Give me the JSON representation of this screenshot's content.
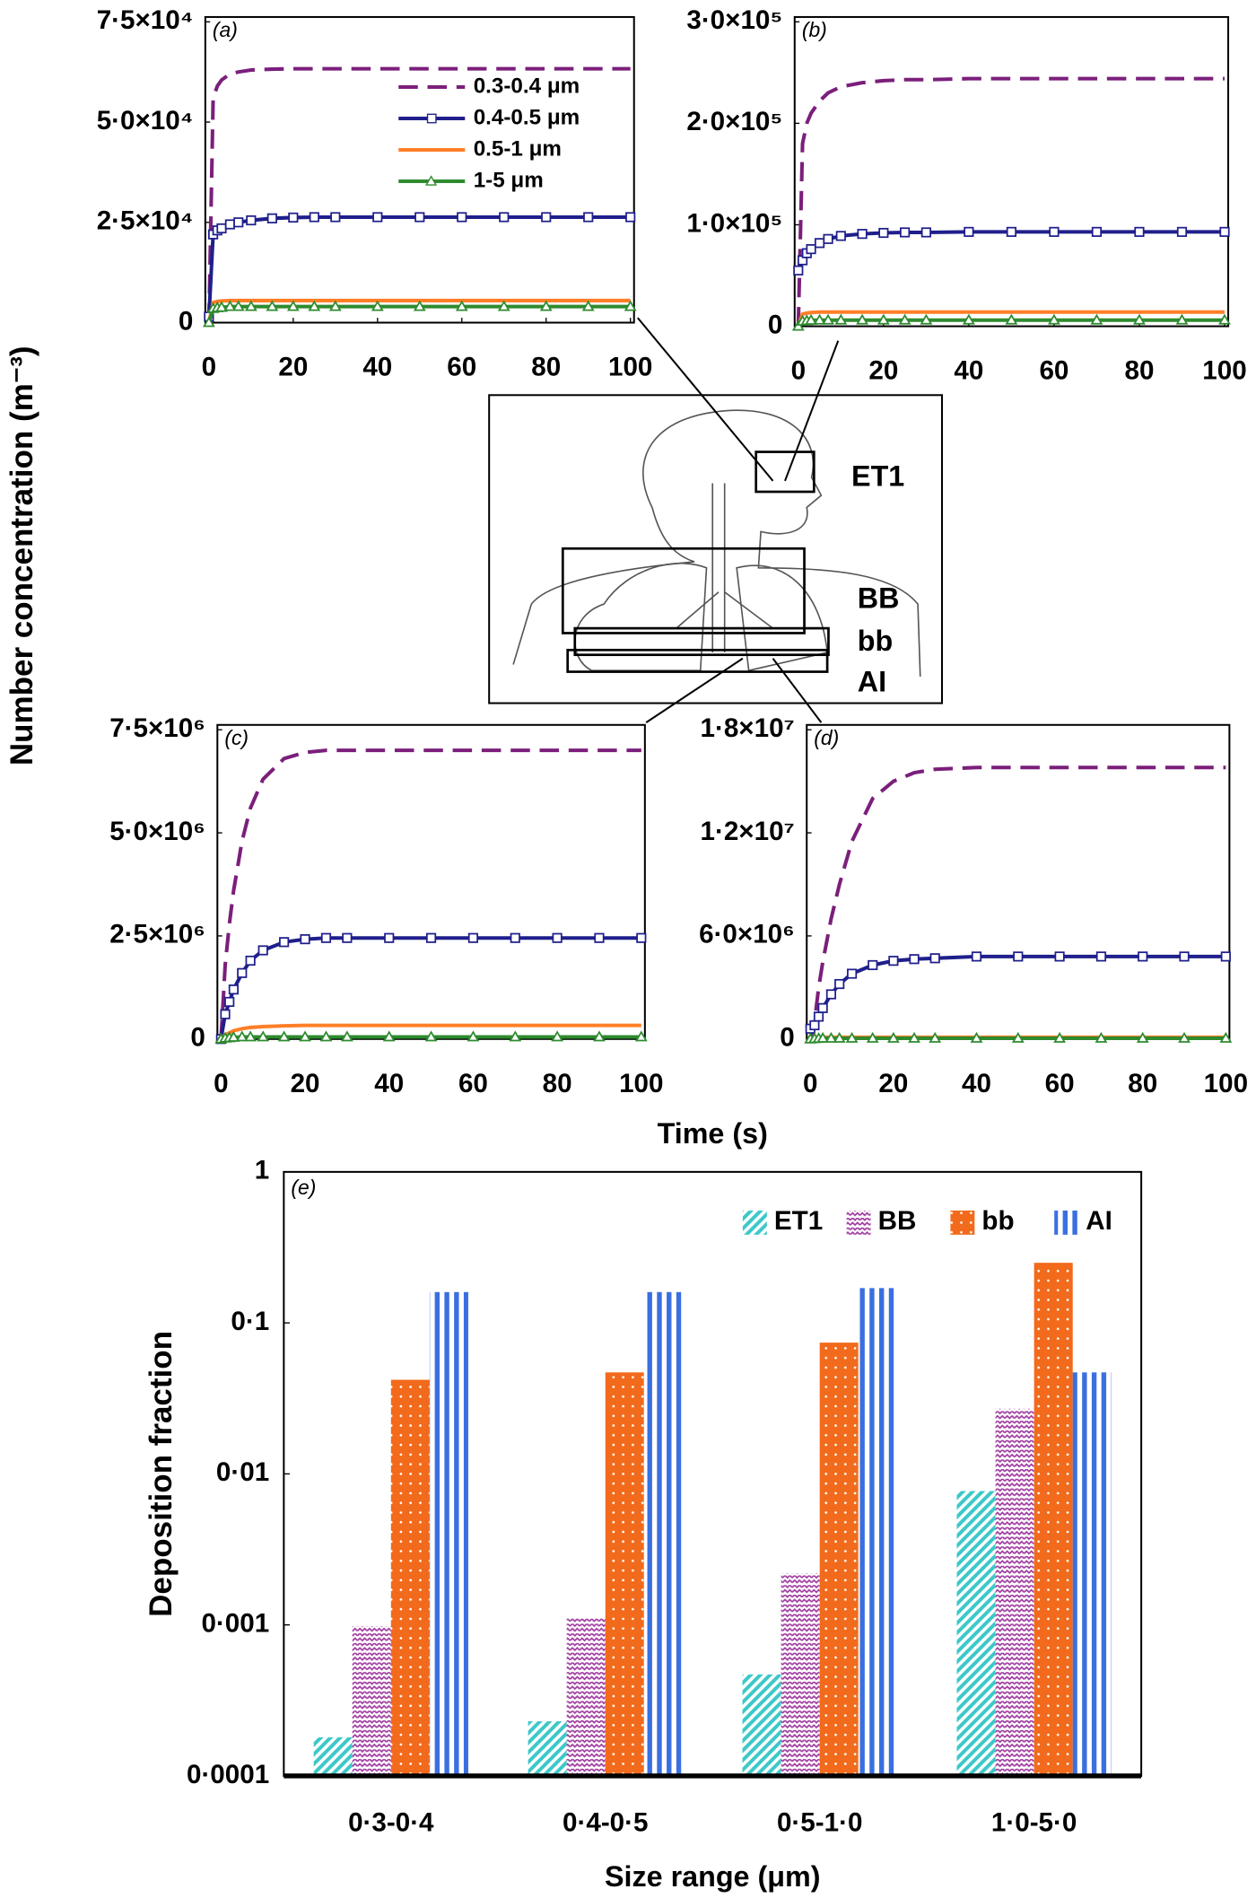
{
  "figure": {
    "ylabel": "Number concentration (m⁻³)",
    "xlabel": "Time (s)"
  },
  "diagram": {
    "labels": [
      "ET1",
      "BB",
      "bb",
      "AI"
    ]
  },
  "chart_data": [
    {
      "type": "line",
      "panel": "(a)",
      "legend": "upper right",
      "x": [
        0,
        1,
        2,
        3,
        5,
        7,
        10,
        15,
        20,
        25,
        30,
        40,
        50,
        60,
        70,
        80,
        90,
        100
      ],
      "xlim": [
        0,
        100
      ],
      "xticks": [
        0,
        20,
        40,
        60,
        80,
        100
      ],
      "ylim": [
        0,
        75000
      ],
      "yticks": [
        0,
        {
          "value": 25000,
          "label": "2·5×10⁴"
        },
        {
          "value": 50000,
          "label": "5·0×10⁴"
        },
        {
          "value": 75000,
          "label": "7·5×10⁴"
        }
      ],
      "series": [
        {
          "name": "0.3-0.4 μm",
          "color": "#7b1f7b",
          "dash": true,
          "values": [
            0,
            56000,
            59000,
            60500,
            62000,
            62500,
            63000,
            63200,
            63300,
            63300,
            63300,
            63300,
            63300,
            63300,
            63300,
            63300,
            63300,
            63300
          ]
        },
        {
          "name": "0.4-0.5 μm",
          "color": "#1f1f8c",
          "marker": "square",
          "values": [
            1500,
            22000,
            23000,
            23500,
            24500,
            25000,
            25500,
            26000,
            26200,
            26300,
            26300,
            26300,
            26300,
            26300,
            26300,
            26300,
            26300,
            26300
          ]
        },
        {
          "name": "0.5-1 μm",
          "color": "#ff7f27",
          "values": [
            0,
            5000,
            5300,
            5400,
            5500,
            5500,
            5500,
            5500,
            5500,
            5500,
            5500,
            5500,
            5500,
            5500,
            5500,
            5500,
            5500,
            5500
          ]
        },
        {
          "name": "1-5 μm",
          "color": "#2e8b2e",
          "marker": "triangle",
          "values": [
            0,
            3500,
            3700,
            3800,
            4000,
            4000,
            4000,
            4000,
            4000,
            4000,
            4000,
            4000,
            4000,
            4000,
            4000,
            4000,
            4000,
            4000
          ]
        }
      ]
    },
    {
      "type": "line",
      "panel": "(b)",
      "x": [
        0,
        1,
        2,
        3,
        5,
        7,
        10,
        15,
        20,
        25,
        30,
        40,
        50,
        60,
        70,
        80,
        90,
        100
      ],
      "xlim": [
        0,
        100
      ],
      "xticks": [
        0,
        20,
        40,
        60,
        80,
        100
      ],
      "ylim": [
        0,
        300000
      ],
      "yticks": [
        0,
        {
          "value": 100000,
          "label": "1·0×10⁵"
        },
        {
          "value": 200000,
          "label": "2·0×10⁵"
        },
        {
          "value": 300000,
          "label": "3·0×10⁵"
        }
      ],
      "series": [
        {
          "color": "#7b1f7b",
          "dash": true,
          "values": [
            0,
            180000,
            200000,
            210000,
            222000,
            230000,
            236000,
            240000,
            242000,
            243000,
            243000,
            244000,
            244000,
            244000,
            244000,
            244000,
            244000,
            244000
          ]
        },
        {
          "color": "#1f1f8c",
          "marker": "square",
          "values": [
            55000,
            65000,
            72000,
            76000,
            82000,
            86000,
            89000,
            91000,
            92000,
            92500,
            92500,
            93000,
            93000,
            93000,
            93000,
            93000,
            93000,
            93000
          ]
        },
        {
          "color": "#ff7f27",
          "values": [
            0,
            12000,
            13000,
            13500,
            14000,
            14000,
            14000,
            14000,
            14000,
            14000,
            14000,
            14000,
            14000,
            14000,
            14000,
            14000,
            14000,
            14000
          ]
        },
        {
          "color": "#2e8b2e",
          "marker": "triangle",
          "values": [
            0,
            5000,
            5500,
            5800,
            6000,
            6000,
            6000,
            6000,
            6000,
            6000,
            6000,
            6000,
            6000,
            6000,
            6000,
            6000,
            6000,
            6000
          ]
        }
      ]
    },
    {
      "type": "line",
      "panel": "(c)",
      "x": [
        0,
        1,
        2,
        3,
        5,
        7,
        10,
        15,
        20,
        25,
        30,
        40,
        50,
        60,
        70,
        80,
        90,
        100
      ],
      "xlim": [
        0,
        100
      ],
      "xticks": [
        0,
        20,
        40,
        60,
        80,
        100
      ],
      "ylim": [
        0,
        7500000
      ],
      "yticks": [
        0,
        {
          "value": 2500000,
          "label": "2·5×10⁶"
        },
        {
          "value": 5000000,
          "label": "5·0×10⁶"
        },
        {
          "value": 7500000,
          "label": "7·5×10⁶"
        }
      ],
      "series": [
        {
          "color": "#7b1f7b",
          "dash": true,
          "values": [
            0,
            1800000,
            2800000,
            3600000,
            4800000,
            5600000,
            6300000,
            6800000,
            6950000,
            7000000,
            7000000,
            7000000,
            7000000,
            7000000,
            7000000,
            7000000,
            7000000,
            7000000
          ]
        },
        {
          "color": "#1f1f8c",
          "marker": "square",
          "values": [
            0,
            600000,
            900000,
            1200000,
            1600000,
            1900000,
            2150000,
            2350000,
            2420000,
            2450000,
            2450000,
            2450000,
            2450000,
            2450000,
            2450000,
            2450000,
            2450000,
            2450000
          ]
        },
        {
          "color": "#ff7f27",
          "values": [
            0,
            100000,
            150000,
            200000,
            250000,
            280000,
            300000,
            320000,
            330000,
            330000,
            330000,
            330000,
            330000,
            330000,
            330000,
            330000,
            330000,
            330000
          ]
        },
        {
          "color": "#2e8b2e",
          "marker": "triangle",
          "values": [
            0,
            20000,
            30000,
            40000,
            50000,
            50000,
            50000,
            50000,
            50000,
            50000,
            50000,
            50000,
            50000,
            50000,
            50000,
            50000,
            50000,
            50000
          ]
        }
      ]
    },
    {
      "type": "line",
      "panel": "(d)",
      "x": [
        0,
        1,
        2,
        3,
        5,
        7,
        10,
        15,
        20,
        25,
        30,
        40,
        50,
        60,
        70,
        80,
        90,
        100
      ],
      "xlim": [
        0,
        100
      ],
      "xticks": [
        0,
        20,
        40,
        60,
        80,
        100
      ],
      "ylim": [
        0,
        18000000
      ],
      "yticks": [
        0,
        {
          "value": 6000000,
          "label": "6·0×10⁶"
        },
        {
          "value": 12000000,
          "label": "1·2×10⁷"
        },
        {
          "value": 18000000,
          "label": "1·8×10⁷"
        }
      ],
      "series": [
        {
          "color": "#7b1f7b",
          "dash": true,
          "values": [
            0,
            1000000,
            3000000,
            4500000,
            7000000,
            9000000,
            11500000,
            14000000,
            15000000,
            15500000,
            15700000,
            15800000,
            15800000,
            15800000,
            15800000,
            15800000,
            15800000,
            15800000
          ]
        },
        {
          "color": "#1f1f8c",
          "marker": "square",
          "values": [
            600000,
            800000,
            1300000,
            1800000,
            2600000,
            3200000,
            3800000,
            4300000,
            4550000,
            4650000,
            4700000,
            4800000,
            4800000,
            4800000,
            4800000,
            4800000,
            4800000,
            4800000
          ]
        },
        {
          "color": "#ff7f27",
          "values": [
            0,
            50000,
            80000,
            100000,
            100000,
            100000,
            100000,
            100000,
            100000,
            100000,
            100000,
            100000,
            100000,
            100000,
            100000,
            100000,
            100000,
            100000
          ]
        },
        {
          "color": "#2e8b2e",
          "marker": "triangle",
          "values": [
            0,
            20000,
            30000,
            40000,
            40000,
            40000,
            40000,
            40000,
            40000,
            40000,
            40000,
            40000,
            40000,
            40000,
            40000,
            40000,
            40000,
            40000
          ]
        }
      ]
    },
    {
      "type": "bar",
      "panel": "(e)",
      "log_scale": true,
      "legend": "upper right",
      "ylabel": "Deposition fraction",
      "xlabel": "Size range (μm)",
      "categories": [
        "0·3-0·4",
        "0·4-0·5",
        "0·5-1·0",
        "1·0-5·0"
      ],
      "ylim": [
        0.0001,
        1
      ],
      "yticks": [
        {
          "value": 0.0001,
          "label": "0·0001"
        },
        {
          "value": 0.001,
          "label": "0·001"
        },
        {
          "value": 0.01,
          "label": "0·01"
        },
        {
          "value": 0.1,
          "label": "0·1"
        },
        1
      ],
      "series": [
        {
          "name": "ET1",
          "color": "#3cc8c8",
          "pattern": "diagonal",
          "values": [
            0.00018,
            0.00023,
            0.00047,
            0.0077
          ]
        },
        {
          "name": "BB",
          "color": "#a03ca0",
          "pattern": "wave",
          "values": [
            0.00098,
            0.0011,
            0.0022,
            0.027
          ]
        },
        {
          "name": "bb",
          "color": "#f26a1b",
          "pattern": "dots",
          "values": [
            0.042,
            0.047,
            0.074,
            0.25
          ]
        },
        {
          "name": "AI",
          "color": "#3a6fe0",
          "pattern": "vertical",
          "values": [
            0.16,
            0.16,
            0.17,
            0.047
          ]
        }
      ]
    }
  ]
}
